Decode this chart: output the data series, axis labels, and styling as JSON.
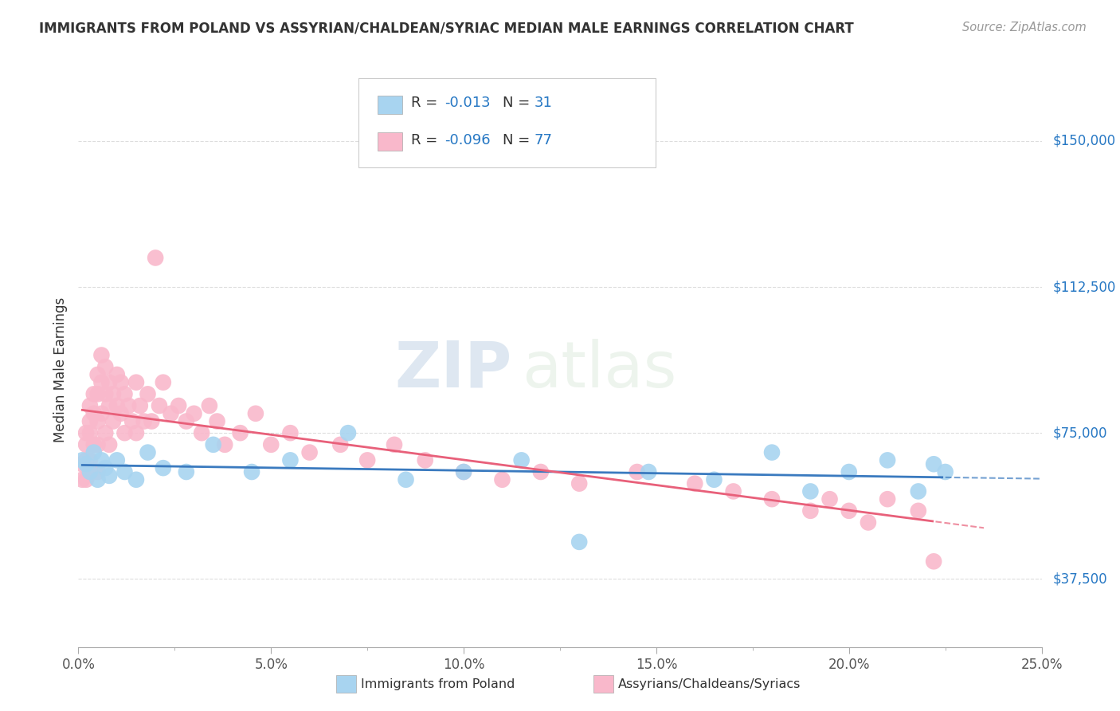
{
  "title": "IMMIGRANTS FROM POLAND VS ASSYRIAN/CHALDEAN/SYRIAC MEDIAN MALE EARNINGS CORRELATION CHART",
  "source": "Source: ZipAtlas.com",
  "ylabel": "Median Male Earnings",
  "xlabel_ticks": [
    "0.0%",
    "5.0%",
    "10.0%",
    "15.0%",
    "20.0%",
    "25.0%"
  ],
  "ytick_labels": [
    "$37,500",
    "$75,000",
    "$112,500",
    "$150,000"
  ],
  "ytick_values": [
    37500,
    75000,
    112500,
    150000
  ],
  "xlim": [
    0.0,
    0.25
  ],
  "ylim": [
    20000,
    162500
  ],
  "blue_color": "#a8d4f0",
  "pink_color": "#f9b8cb",
  "blue_line_color": "#3a7abf",
  "pink_line_color": "#e8607a",
  "watermark_zip": "ZIP",
  "watermark_atlas": "atlas",
  "blue_scatter_x": [
    0.001,
    0.002,
    0.003,
    0.004,
    0.005,
    0.006,
    0.007,
    0.008,
    0.01,
    0.012,
    0.015,
    0.018,
    0.022,
    0.028,
    0.035,
    0.045,
    0.055,
    0.07,
    0.085,
    0.1,
    0.115,
    0.13,
    0.148,
    0.165,
    0.18,
    0.19,
    0.2,
    0.21,
    0.218,
    0.222,
    0.225
  ],
  "blue_scatter_y": [
    68000,
    67000,
    65000,
    70000,
    63000,
    68000,
    66000,
    64000,
    68000,
    65000,
    63000,
    70000,
    66000,
    65000,
    72000,
    65000,
    68000,
    75000,
    63000,
    65000,
    68000,
    47000,
    65000,
    63000,
    70000,
    60000,
    65000,
    68000,
    60000,
    67000,
    65000
  ],
  "pink_scatter_x": [
    0.001,
    0.001,
    0.002,
    0.002,
    0.002,
    0.002,
    0.003,
    0.003,
    0.003,
    0.003,
    0.004,
    0.004,
    0.004,
    0.004,
    0.005,
    0.005,
    0.005,
    0.005,
    0.005,
    0.006,
    0.006,
    0.006,
    0.007,
    0.007,
    0.007,
    0.008,
    0.008,
    0.008,
    0.009,
    0.009,
    0.01,
    0.01,
    0.011,
    0.011,
    0.012,
    0.012,
    0.013,
    0.014,
    0.015,
    0.015,
    0.016,
    0.017,
    0.018,
    0.019,
    0.02,
    0.021,
    0.022,
    0.024,
    0.026,
    0.028,
    0.03,
    0.032,
    0.034,
    0.036,
    0.038,
    0.042,
    0.046,
    0.05,
    0.055,
    0.06,
    0.068,
    0.075,
    0.082,
    0.09,
    0.1,
    0.11,
    0.12,
    0.13,
    0.145,
    0.16,
    0.17,
    0.18,
    0.19,
    0.195,
    0.2,
    0.205,
    0.21,
    0.218,
    0.222
  ],
  "pink_scatter_y": [
    67000,
    63000,
    75000,
    72000,
    68000,
    63000,
    82000,
    78000,
    75000,
    68000,
    85000,
    80000,
    72000,
    65000,
    90000,
    85000,
    78000,
    72000,
    65000,
    95000,
    88000,
    80000,
    92000,
    85000,
    75000,
    88000,
    82000,
    72000,
    85000,
    78000,
    90000,
    82000,
    88000,
    80000,
    85000,
    75000,
    82000,
    78000,
    88000,
    75000,
    82000,
    78000,
    85000,
    78000,
    120000,
    82000,
    88000,
    80000,
    82000,
    78000,
    80000,
    75000,
    82000,
    78000,
    72000,
    75000,
    80000,
    72000,
    75000,
    70000,
    72000,
    68000,
    72000,
    68000,
    65000,
    63000,
    65000,
    62000,
    65000,
    62000,
    60000,
    58000,
    55000,
    58000,
    55000,
    52000,
    58000,
    55000,
    42000
  ]
}
